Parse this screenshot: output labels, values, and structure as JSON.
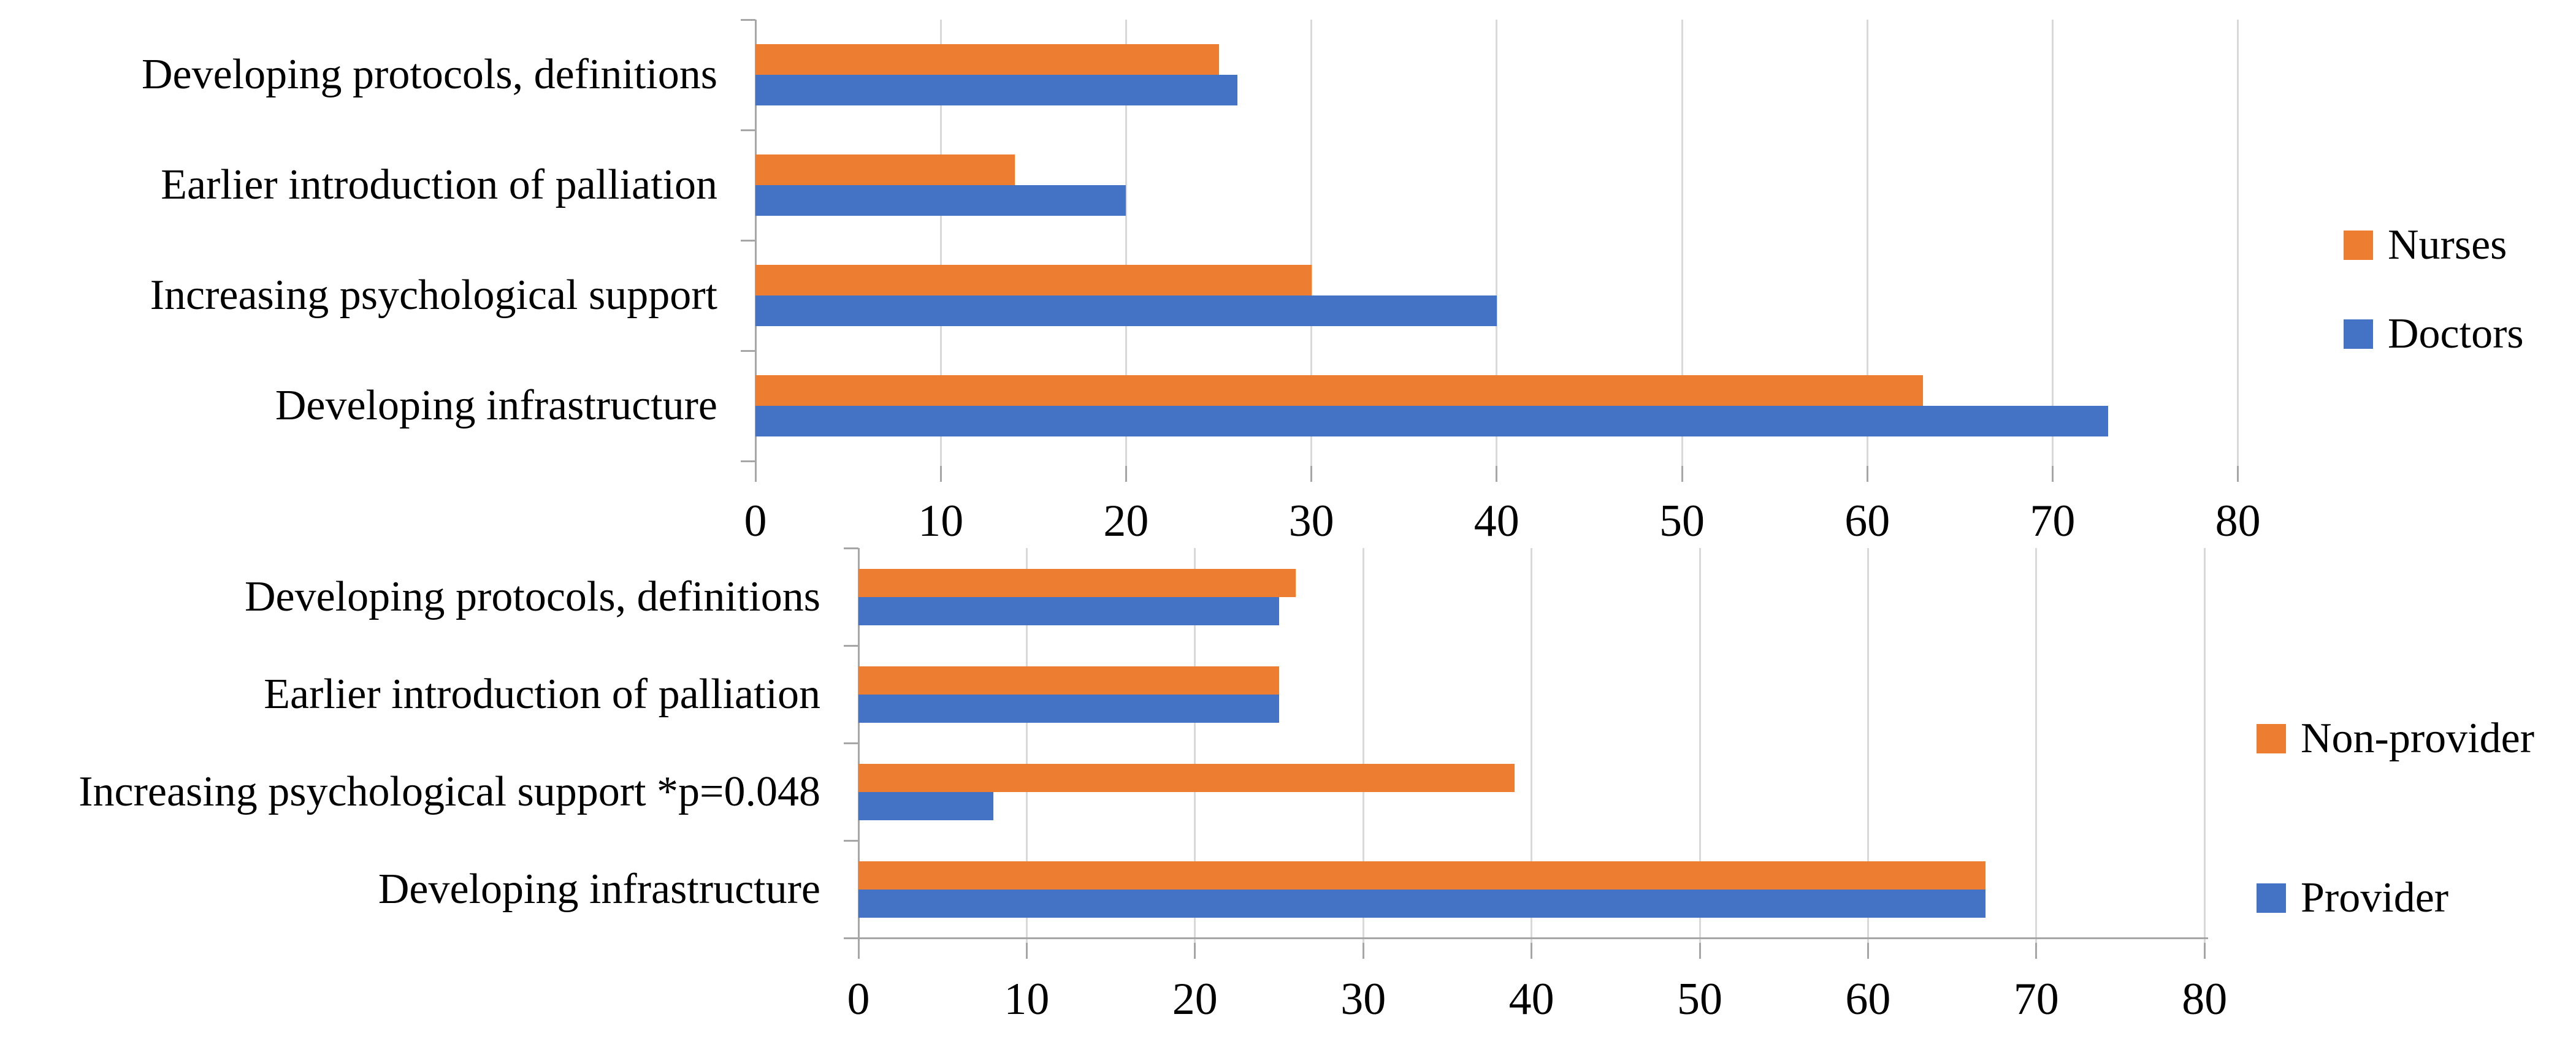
{
  "page": {
    "background": "#ffffff"
  },
  "colors": {
    "orange": "#ED7D31",
    "blue": "#4472C4",
    "gridline": "#D9D9D9",
    "axis": "#A6A6A6",
    "text": "#000000"
  },
  "chart_data": [
    {
      "type": "bar",
      "orientation": "horizontal",
      "title": "",
      "categories": [
        "Developing protocols, definitions",
        "Earlier introduction of palliation",
        "Increasing psychological support",
        "Developing infrastructure"
      ],
      "series": [
        {
          "name": "Nurses",
          "color": "#ED7D31",
          "values": [
            25,
            14,
            30,
            63
          ]
        },
        {
          "name": "Doctors",
          "color": "#4472C4",
          "values": [
            26,
            20,
            40,
            73
          ]
        }
      ],
      "xlabel": "",
      "ylabel": "",
      "xlim": [
        0,
        80
      ],
      "xticks": [
        0,
        10,
        20,
        30,
        40,
        50,
        60,
        70,
        80
      ],
      "grid": true,
      "legend_position": "right"
    },
    {
      "type": "bar",
      "orientation": "horizontal",
      "title": "",
      "categories": [
        "Developing protocols, definitions",
        "Earlier introduction of palliation",
        "Increasing psychological support *p=0.048",
        "Developing infrastructure"
      ],
      "series": [
        {
          "name": "Non-provider",
          "color": "#ED7D31",
          "values": [
            26,
            25,
            39,
            67
          ]
        },
        {
          "name": "Provider",
          "color": "#4472C4",
          "values": [
            25,
            25,
            8,
            67
          ]
        }
      ],
      "xlabel": "",
      "ylabel": "",
      "xlim": [
        0,
        80
      ],
      "xticks": [
        0,
        10,
        20,
        30,
        40,
        50,
        60,
        70,
        80
      ],
      "grid": true,
      "legend_position": "right"
    }
  ]
}
